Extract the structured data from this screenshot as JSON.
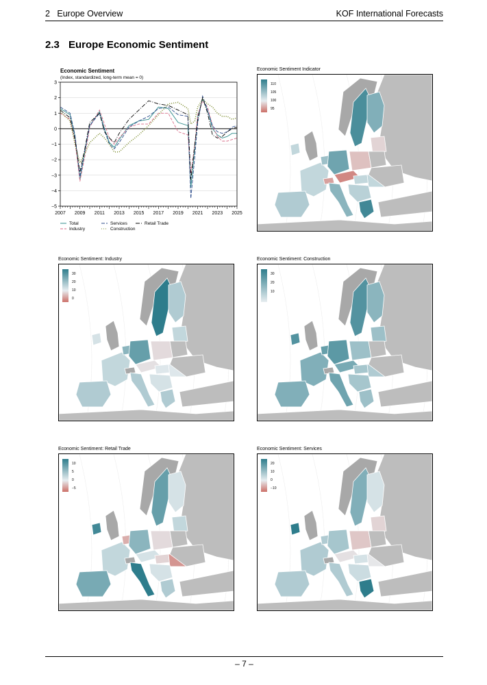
{
  "header": {
    "chapter_num": "2",
    "chapter_title": "Europe Overview",
    "right": "KOF International Forecasts"
  },
  "section": {
    "number": "2.3",
    "title": "Europe Economic Sentiment"
  },
  "footer": {
    "page": "– 7 –"
  },
  "colors": {
    "high": "#2e7d8c",
    "mid": "#e7edf0",
    "low": "#cc6f68",
    "nondata": "#bdbdbd",
    "sea": "#ffffff"
  },
  "chart_data": [
    {
      "type": "line",
      "title": "Economic Sentiment",
      "subtitle": "(Index, standardized, long-term mean = 0)",
      "xlim": [
        2007,
        2025
      ],
      "ylim": [
        -5,
        3
      ],
      "yticks": [
        "3",
        "2",
        "1",
        "0",
        "−1",
        "−2",
        "−3",
        "−4",
        "−5"
      ],
      "xticks": [
        "2007",
        "2009",
        "2011",
        "2013",
        "2015",
        "2017",
        "2019",
        "2021",
        "2023",
        "2025"
      ],
      "series": [
        {
          "name": "Total",
          "color": "#2e8b8b",
          "dash": "",
          "x": [
            2007,
            2008,
            2008.5,
            2009,
            2009.5,
            2010,
            2011,
            2011.5,
            2012,
            2012.5,
            2013,
            2014,
            2015,
            2016,
            2017,
            2018,
            2019,
            2020,
            2020.3,
            2020.7,
            2021,
            2021.5,
            2022,
            2022.5,
            2023,
            2023.5,
            2024,
            2024.5,
            2025
          ],
          "values": [
            1.3,
            0.9,
            -0.5,
            -3.3,
            -1.5,
            0.2,
            1.1,
            0,
            -0.9,
            -1.2,
            -0.7,
            0.2,
            0.5,
            0.6,
            1.4,
            1.3,
            0.4,
            0.2,
            -3.8,
            -1.2,
            0.8,
            1.9,
            1.2,
            0,
            -0.4,
            -0.6,
            -0.5,
            -0.3,
            -0.3
          ]
        },
        {
          "name": "Industry",
          "color": "#d86a86",
          "dash": "4,2",
          "x": [
            2007,
            2008,
            2008.5,
            2009,
            2009.5,
            2010,
            2011,
            2011.5,
            2012,
            2012.5,
            2013,
            2014,
            2015,
            2016,
            2017,
            2018,
            2019,
            2020,
            2020.3,
            2020.7,
            2021,
            2021.5,
            2022,
            2022.5,
            2023,
            2023.5,
            2024,
            2024.5,
            2025
          ],
          "values": [
            1.0,
            0.6,
            -0.8,
            -3.4,
            -1.8,
            0.1,
            1.2,
            0.3,
            -0.6,
            -1.0,
            -0.6,
            0.1,
            0.3,
            0.3,
            1.0,
            1.0,
            -0.2,
            -0.4,
            -2.9,
            -1.0,
            0.9,
            1.8,
            1.4,
            0.2,
            -0.5,
            -0.8,
            -0.8,
            -0.7,
            -0.6
          ]
        },
        {
          "name": "Services",
          "color": "#2a4a8a",
          "dash": "5,2",
          "x": [
            2007,
            2008,
            2008.5,
            2009,
            2009.5,
            2010,
            2011,
            2011.5,
            2012,
            2012.5,
            2013,
            2014,
            2015,
            2016,
            2017,
            2018,
            2019,
            2020,
            2020.3,
            2020.7,
            2021,
            2021.5,
            2022,
            2022.5,
            2023,
            2023.5,
            2024,
            2024.5,
            2025
          ],
          "values": [
            1.4,
            1.0,
            -0.4,
            -3.1,
            -1.4,
            0.2,
            1.0,
            -0.1,
            -1.0,
            -1.3,
            -0.9,
            0.1,
            0.5,
            0.8,
            1.3,
            1.4,
            0.9,
            0.8,
            -4.5,
            -1.8,
            0.4,
            2.1,
            1.2,
            0.2,
            -0.2,
            -0.3,
            -0.2,
            0.1,
            0.2
          ]
        },
        {
          "name": "Construction",
          "color": "#7a8a2a",
          "dash": "1,2",
          "x": [
            2007,
            2008,
            2008.5,
            2009,
            2009.5,
            2010,
            2011,
            2011.5,
            2012,
            2012.5,
            2013,
            2014,
            2015,
            2016,
            2017,
            2018,
            2019,
            2020,
            2020.3,
            2020.7,
            2021,
            2021.5,
            2022,
            2022.5,
            2023,
            2023.5,
            2024,
            2024.5,
            2025
          ],
          "values": [
            1.1,
            0.5,
            -1.0,
            -2.2,
            -1.6,
            -0.9,
            -0.3,
            -0.6,
            -1.0,
            -1.5,
            -1.5,
            -0.9,
            -0.4,
            0.2,
            0.9,
            1.6,
            1.7,
            1.3,
            0.3,
            0.5,
            1.4,
            1.9,
            1.6,
            1.4,
            1.0,
            0.8,
            0.8,
            0.6,
            0.7
          ]
        },
        {
          "name": "Retail Trade",
          "color": "#000000",
          "dash": "6,2,1,2",
          "x": [
            2007,
            2008,
            2008.5,
            2009,
            2009.5,
            2010,
            2011,
            2011.5,
            2012,
            2012.5,
            2013,
            2014,
            2015,
            2016,
            2017,
            2018,
            2019,
            2020,
            2020.3,
            2020.7,
            2021,
            2021.5,
            2022,
            2022.5,
            2023,
            2023.5,
            2024,
            2024.5,
            2025
          ],
          "values": [
            1.2,
            0.7,
            -0.7,
            -2.8,
            -1.3,
            0.4,
            1.0,
            -0.2,
            -0.6,
            -0.9,
            -0.3,
            0.6,
            1.2,
            1.8,
            1.6,
            1.5,
            1.2,
            0.9,
            -3.3,
            -1.0,
            0.6,
            2.0,
            1.0,
            -0.4,
            -0.6,
            -0.5,
            -0.2,
            0.0,
            0.1
          ]
        }
      ]
    }
  ],
  "maps": [
    {
      "title": "Economic Sentiment Indicator",
      "legend": [
        "110",
        "105",
        "100",
        "95"
      ]
    },
    {
      "title": "Economic Sentiment: Industry",
      "legend": [
        "30",
        "20",
        "10",
        "0"
      ]
    },
    {
      "title": "Economic Sentiment: Construction",
      "legend": [
        "30",
        "20",
        "10"
      ]
    },
    {
      "title": "Economic Sentiment: Retail Trade",
      "legend": [
        "10",
        "5",
        "0",
        "−5"
      ]
    },
    {
      "title": "Economic Sentiment: Services",
      "legend": [
        "20",
        "10",
        "0",
        "−10"
      ]
    }
  ]
}
